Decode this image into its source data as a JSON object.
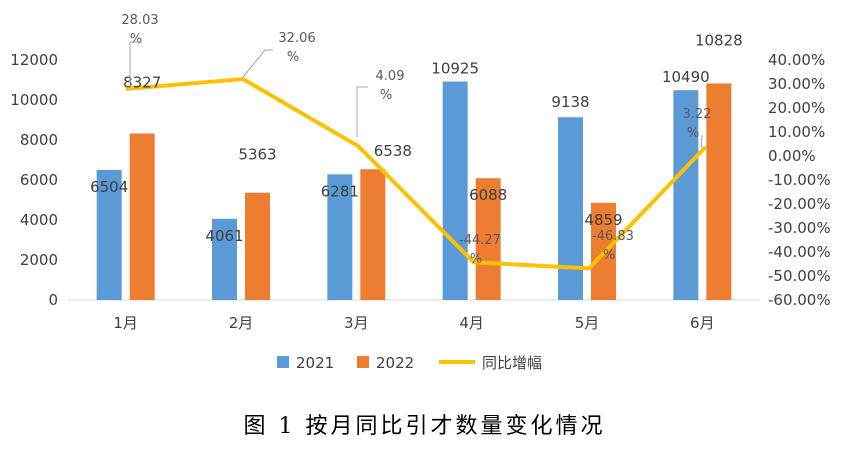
{
  "chart_data": {
    "type": "bar",
    "categories": [
      "1月",
      "2月",
      "3月",
      "4月",
      "5月",
      "6月"
    ],
    "series": [
      {
        "name": "2021",
        "type": "bar",
        "axis": "left",
        "color": "#5B9BD5",
        "values": [
          6504,
          4061,
          6281,
          10925,
          9138,
          10490
        ]
      },
      {
        "name": "2022",
        "type": "bar",
        "axis": "left",
        "color": "#ED7D31",
        "values": [
          8327,
          5363,
          6538,
          6088,
          4859,
          10828
        ]
      },
      {
        "name": "同比增幅",
        "type": "line",
        "axis": "right",
        "color": "#FFC000",
        "values": [
          28.03,
          32.06,
          4.09,
          -44.27,
          -46.83,
          3.22
        ],
        "unit": "%"
      }
    ],
    "y_left": {
      "min": 0,
      "max": 12000,
      "ticks": [
        "0",
        "2000",
        "4000",
        "6000",
        "8000",
        "10000",
        "12000"
      ]
    },
    "y_right": {
      "min": -60,
      "max": 40,
      "ticks": [
        "-60.00%",
        "-50.00%",
        "-40.00%",
        "-30.00%",
        "-20.00%",
        "-10.00%",
        "0.00%",
        "10.00%",
        "20.00%",
        "30.00%",
        "40.00%"
      ]
    },
    "legend_position": "bottom",
    "grid": false,
    "caption": "图 1   按月同比引才数量变化情况"
  }
}
